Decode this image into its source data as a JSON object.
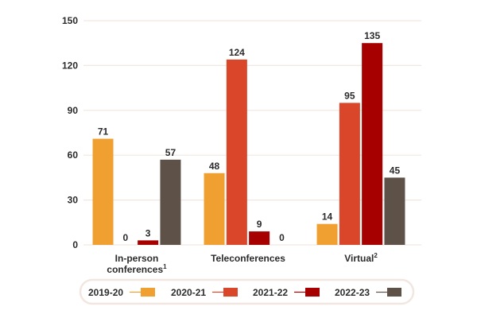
{
  "chart_data": {
    "type": "bar",
    "title": "",
    "xlabel": "",
    "ylabel": "",
    "ylim": [
      0,
      150
    ],
    "yticks": [
      0,
      30,
      60,
      90,
      120,
      150
    ],
    "grid": true,
    "legend_position": "bottom",
    "categories": [
      {
        "line1": "In-person",
        "line2": "conferences",
        "sup": "1"
      },
      {
        "line1": "Teleconferences",
        "line2": "",
        "sup": ""
      },
      {
        "line1": "Virtual",
        "line2": "",
        "sup": "2"
      }
    ],
    "series": [
      {
        "name": "2019-20",
        "color": "#F0A030",
        "values": [
          71,
          48,
          14
        ]
      },
      {
        "name": "2020-21",
        "color": "#D9462A",
        "values": [
          0,
          124,
          95
        ]
      },
      {
        "name": "2021-22",
        "color": "#A60000",
        "values": [
          3,
          9,
          135
        ]
      },
      {
        "name": "2022-23",
        "color": "#5E5148",
        "values": [
          57,
          0,
          45
        ]
      }
    ]
  },
  "colors": {
    "grid": "#F2E6E0",
    "text": "#2b2b2b",
    "legend_border": "#F2E6E0"
  }
}
